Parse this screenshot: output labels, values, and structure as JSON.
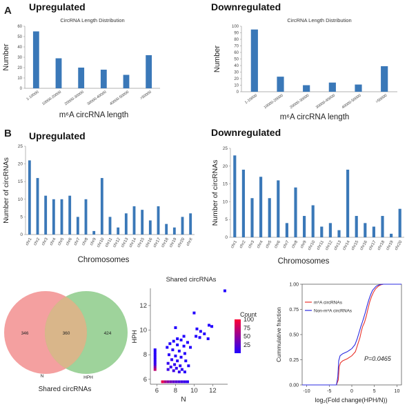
{
  "panel_labels": {
    "a": "A",
    "b": "B"
  },
  "chart_data": [
    {
      "id": "a-up",
      "type": "bar",
      "heading": "Upregulated",
      "title": "CircRNA Length Distribution",
      "ylabel": "Number",
      "xlabel": "m⁶A circRNA length",
      "categories": [
        "1-10000",
        "10000-20000",
        "20000-30000",
        "30000-40000",
        "40000-50000",
        ">50000"
      ],
      "values": [
        55,
        29,
        20,
        18,
        13,
        32
      ],
      "ylim": [
        0,
        60
      ],
      "yticks": [
        0,
        10,
        20,
        30,
        40,
        50,
        60
      ],
      "color": "#3a78b8"
    },
    {
      "id": "a-down",
      "type": "bar",
      "heading": "Downregulated",
      "title": "CircRNA Length Distribution",
      "ylabel": "Number",
      "xlabel": "m⁶A circRNA length",
      "categories": [
        "1-10000",
        "10000-20000",
        "20000-30000",
        "30000-40000",
        "40000-50000",
        ">50000"
      ],
      "values": [
        95,
        23,
        10,
        14,
        11,
        39
      ],
      "ylim": [
        0,
        100
      ],
      "yticks": [
        0,
        10,
        20,
        30,
        40,
        50,
        60,
        70,
        80,
        90,
        100
      ],
      "color": "#3a78b8"
    },
    {
      "id": "b-up",
      "type": "bar",
      "heading": "Upregulated",
      "ylabel": "Number of circRNAs",
      "xlabel": "Chromosomes",
      "categories": [
        "chr1",
        "chr2",
        "chr3",
        "chr4",
        "chr5",
        "chr6",
        "chr7",
        "chr8",
        "chr9",
        "chr10",
        "chr11",
        "chr12",
        "chr13",
        "chr14",
        "chr15",
        "chr16",
        "chr17",
        "chr18",
        "chr19",
        "chr20",
        "chrX"
      ],
      "values": [
        21,
        16,
        11,
        10,
        10,
        11,
        5,
        10,
        1,
        16,
        5,
        2,
        6,
        8,
        7,
        4,
        8,
        3,
        2,
        5,
        6
      ],
      "ylim": [
        0,
        25
      ],
      "yticks": [
        0,
        5,
        10,
        15,
        20,
        25
      ],
      "color": "#3a78b8"
    },
    {
      "id": "b-down",
      "type": "bar",
      "heading": "Downregulated",
      "ylabel": "Number of circRNAs",
      "xlabel": "Chromosomes",
      "categories": [
        "chr1",
        "chr2",
        "chr3",
        "chr4",
        "chr5",
        "chr6",
        "chr7",
        "chr8",
        "chr9",
        "chr10",
        "chr11",
        "chr12",
        "chr13",
        "chr14",
        "chr15",
        "chr16",
        "chr17",
        "chr18",
        "chr19",
        "chr20"
      ],
      "values": [
        23,
        19,
        11,
        17,
        11,
        16,
        4,
        14,
        6,
        9,
        3,
        4,
        2,
        19,
        6,
        4,
        3,
        6,
        1,
        8
      ],
      "ylim": [
        0,
        25
      ],
      "yticks": [
        0,
        5,
        10,
        15,
        20,
        25
      ],
      "color": "#3a78b8"
    },
    {
      "id": "venn",
      "type": "venn",
      "title": "Shared circRNAs",
      "sets": [
        {
          "name": "N",
          "only": 346,
          "color": "#f08080"
        },
        {
          "name": "HPH",
          "only": 424,
          "color": "#7dc47a"
        }
      ],
      "intersection": 360
    },
    {
      "id": "scatter",
      "type": "scatter",
      "title": "Shared circRNAs",
      "xlabel": "N",
      "ylabel": "HPH",
      "xlim": [
        5.3,
        13.6
      ],
      "ylim": [
        5.6,
        13.4
      ],
      "xticks": [
        6,
        8,
        10,
        12
      ],
      "yticks": [
        6,
        8,
        10,
        12
      ],
      "legend_title": "Count",
      "legend_ticks": [
        100,
        75,
        50,
        25
      ],
      "color_low": "#2200ff",
      "color_high": "#ff0033",
      "points": [
        [
          13.3,
          13.2,
          1
        ],
        [
          10.0,
          11.4,
          1
        ],
        [
          11.6,
          10.4,
          1
        ],
        [
          11.9,
          10.3,
          1
        ],
        [
          10.3,
          10.1,
          1
        ],
        [
          10.7,
          9.9,
          1
        ],
        [
          11.1,
          9.7,
          1
        ],
        [
          10.2,
          9.5,
          1
        ],
        [
          10.6,
          9.4,
          1
        ],
        [
          11.5,
          9.3,
          1
        ],
        [
          8.0,
          10.2,
          1
        ],
        [
          8.9,
          9.5,
          1
        ],
        [
          8.2,
          9.3,
          1
        ],
        [
          8.6,
          9.2,
          1
        ],
        [
          7.8,
          9.1,
          1
        ],
        [
          9.3,
          9.0,
          1
        ],
        [
          7.4,
          8.9,
          1
        ],
        [
          8.2,
          8.8,
          1
        ],
        [
          8.9,
          8.7,
          1
        ],
        [
          7.1,
          8.6,
          1
        ],
        [
          9.6,
          8.6,
          2
        ],
        [
          7.7,
          8.4,
          3
        ],
        [
          8.4,
          8.3,
          2
        ],
        [
          9.0,
          8.1,
          2
        ],
        [
          7.3,
          8.0,
          4
        ],
        [
          8.0,
          7.9,
          4
        ],
        [
          8.6,
          7.8,
          3
        ],
        [
          7.6,
          7.6,
          6
        ],
        [
          8.2,
          7.5,
          5
        ],
        [
          9.1,
          7.5,
          2
        ],
        [
          7.2,
          7.3,
          8
        ],
        [
          7.9,
          7.2,
          7
        ],
        [
          8.5,
          7.1,
          4
        ],
        [
          9.4,
          7.1,
          2
        ],
        [
          7.5,
          7.0,
          10
        ],
        [
          8.1,
          6.9,
          9
        ],
        [
          8.7,
          6.8,
          5
        ],
        [
          7.2,
          6.8,
          12
        ],
        [
          7.8,
          6.7,
          14
        ],
        [
          8.4,
          6.6,
          8
        ],
        [
          9.0,
          6.6,
          3
        ],
        [
          5.8,
          8.4,
          3
        ],
        [
          5.8,
          8.2,
          3
        ],
        [
          5.8,
          8.0,
          4
        ],
        [
          5.8,
          7.8,
          5
        ],
        [
          5.8,
          7.6,
          6
        ],
        [
          5.8,
          7.4,
          8
        ],
        [
          5.8,
          7.2,
          12
        ],
        [
          5.8,
          7.0,
          40
        ],
        [
          5.8,
          6.8,
          70
        ],
        [
          6.6,
          5.8,
          90
        ],
        [
          6.9,
          5.8,
          60
        ],
        [
          7.2,
          5.8,
          45
        ],
        [
          7.5,
          5.8,
          35
        ],
        [
          7.8,
          5.8,
          28
        ],
        [
          8.1,
          5.8,
          22
        ],
        [
          8.4,
          5.8,
          18
        ],
        [
          8.7,
          5.8,
          14
        ],
        [
          9.0,
          5.8,
          10
        ],
        [
          9.3,
          5.8,
          6
        ]
      ]
    },
    {
      "id": "cdf",
      "type": "line",
      "ylabel": "Cummulative fraction",
      "xlabel": "log₂(Fold change(HPH/N))",
      "xlim": [
        -11,
        11
      ],
      "ylim": [
        0,
        1
      ],
      "xticks": [
        -10,
        -5,
        0,
        5,
        10
      ],
      "yticks": [
        "0.00",
        "0.25",
        "0.50",
        "0.75",
        "1.00"
      ],
      "annotation": "P=0.0465",
      "series": [
        {
          "name": "m⁶A circRNAs",
          "color": "#e8322b",
          "x": [
            -11,
            -3.4,
            -3.0,
            -2.8,
            -2.5,
            -2.0,
            -1.0,
            0.0,
            0.8,
            1.3,
            1.8,
            2.1,
            2.4,
            2.8,
            3.2,
            3.6,
            4.0,
            4.4,
            4.8,
            5.2,
            5.6,
            6.0,
            6.5,
            7.0,
            11
          ],
          "y": [
            0,
            0,
            0.05,
            0.18,
            0.22,
            0.24,
            0.26,
            0.29,
            0.33,
            0.4,
            0.47,
            0.53,
            0.58,
            0.62,
            0.68,
            0.76,
            0.83,
            0.88,
            0.92,
            0.95,
            0.97,
            0.985,
            0.995,
            1.0,
            1.0
          ]
        },
        {
          "name": "Non-m⁶A circRNAs",
          "color": "#2a2ae0",
          "x": [
            -11,
            -3.4,
            -3.1,
            -2.9,
            -2.6,
            -2.0,
            -1.0,
            0.0,
            0.7,
            1.2,
            1.6,
            2.0,
            2.3,
            2.6,
            3.0,
            3.4,
            3.8,
            4.2,
            4.6,
            5.0,
            5.4,
            5.8,
            6.3,
            7.0,
            11
          ],
          "y": [
            0,
            0,
            0.08,
            0.24,
            0.29,
            0.31,
            0.33,
            0.36,
            0.4,
            0.46,
            0.52,
            0.58,
            0.62,
            0.66,
            0.72,
            0.79,
            0.85,
            0.9,
            0.94,
            0.96,
            0.98,
            0.99,
            0.997,
            1.0,
            1.0
          ]
        }
      ]
    }
  ]
}
